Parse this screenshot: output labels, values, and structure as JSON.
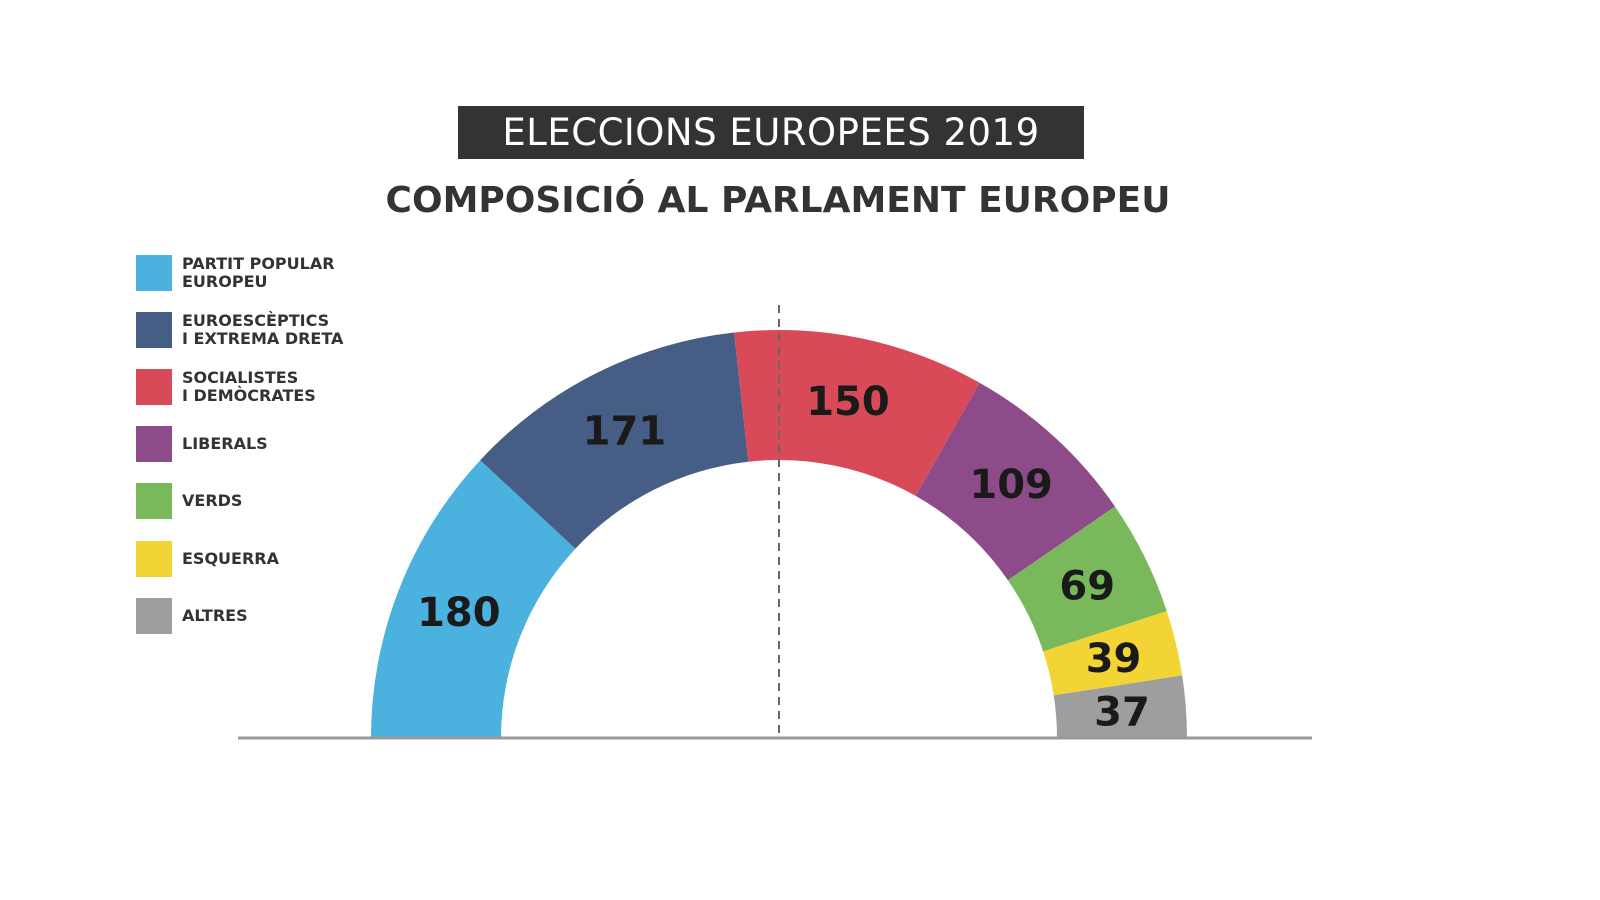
{
  "title": "ELECCIONS EUROPEES 2019",
  "subtitle": "COMPOSICIÓ AL PARLAMENT EUROPEU",
  "chart_data": {
    "type": "pie",
    "variant": "semicircle-donut (parliament)",
    "categories": [
      "PARTIT POPULAR\nEUROPEU",
      "EUROESCÈPTICS\nI EXTREMA DRETA",
      "SOCIALISTES\nI DEMÒCRATES",
      "LIBERALS",
      "VERDS",
      "ESQUERRA",
      "ALTRES"
    ],
    "values": [
      180,
      171,
      150,
      109,
      69,
      39,
      37
    ],
    "labels": [
      "180",
      "171",
      "150",
      "109",
      "69",
      "39",
      "37"
    ],
    "colors": [
      "#4bb1de",
      "#465e85",
      "#d84a58",
      "#8e4b8a",
      "#7ab85c",
      "#f2d534",
      "#9e9e9e"
    ],
    "legend": "left",
    "majority_line": "dashed vertical at center"
  }
}
